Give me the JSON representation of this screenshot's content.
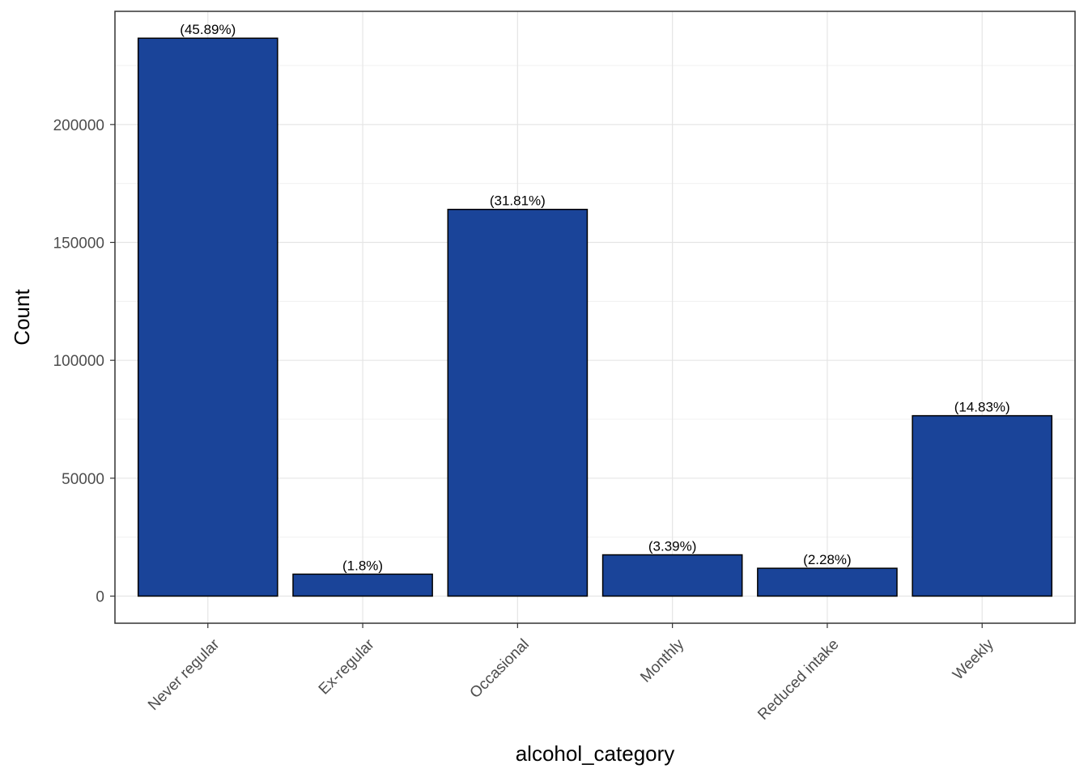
{
  "chart_data": {
    "type": "bar",
    "categories": [
      "Never regular",
      "Ex-regular",
      "Occasional",
      "Monthly",
      "Reduced intake",
      "Weekly"
    ],
    "values": [
      236600,
      9300,
      164000,
      17500,
      11800,
      76500
    ],
    "labels": [
      "(45.89%)",
      "(1.8%)",
      "(31.81%)",
      "(3.39%)",
      "(2.28%)",
      "(14.83%)"
    ],
    "xlabel": "alcohol_category",
    "ylabel": "Count",
    "ylim": [
      -11500,
      248000
    ],
    "yticks": [
      0,
      50000,
      100000,
      150000,
      200000
    ],
    "ytick_labels": [
      "0",
      "50000",
      "100000",
      "150000",
      "200000"
    ],
    "grid": true,
    "bar_color": "#1a4499",
    "bar_border_color": "#000000"
  }
}
